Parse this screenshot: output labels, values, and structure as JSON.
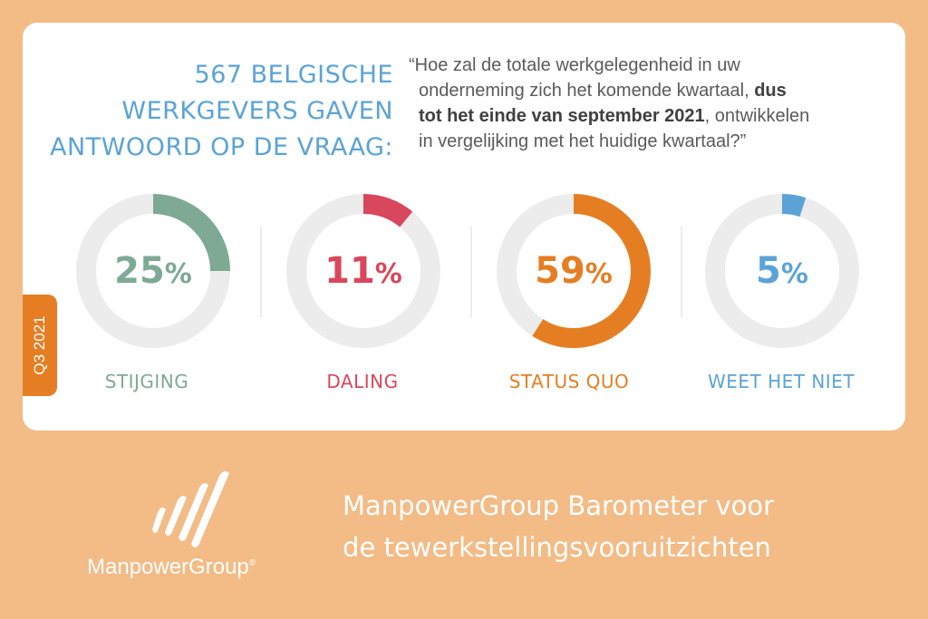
{
  "headline": {
    "lines": [
      "567 BELGISCHE",
      "WERKGEVERS GAVEN",
      "ANTWOORD OP DE VRAAG:"
    ]
  },
  "question": {
    "line1": "“Hoe zal de totale werkgelegenheid in uw",
    "line2_normal": "onderneming zich het komende kwartaal, ",
    "line2_bold": "dus",
    "line3_bold": "tot het einde van september 2021",
    "line3_normal": ", ontwikkelen",
    "line4": "in vergelijking met het huidige kwartaal?”"
  },
  "quarter_tab": "Q3 2021",
  "chart_data": {
    "type": "pie",
    "categories": [
      "STIJGING",
      "DALING",
      "STATUS QUO",
      "WEET HET NIET"
    ],
    "values": [
      25,
      11,
      59,
      5
    ],
    "value_labels": [
      "25%",
      "11%",
      "59%",
      "5%"
    ],
    "colors": [
      "#7da995",
      "#d9475c",
      "#e57e22",
      "#5ba3d6"
    ],
    "track_color": "#ececec",
    "start_angle_deg": 0,
    "direction": "clockwise"
  },
  "footer": {
    "brand": "ManpowerGroup",
    "trademark": "®",
    "title_line1": "ManpowerGroup Barometer voor",
    "title_line2": "de tewerkstellingsvooruitzichten"
  },
  "icons": {
    "logo": "manpowergroup-logo-icon"
  }
}
